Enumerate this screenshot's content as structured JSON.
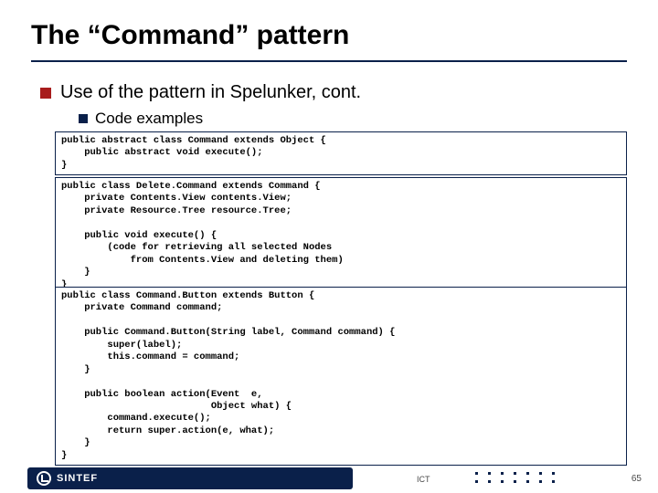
{
  "title": "The “Command” pattern",
  "bullets": {
    "lvl1": "Use of the pattern in Spelunker, cont.",
    "lvl2": "Code examples"
  },
  "code": {
    "box1": "public abstract class Command extends Object {\n    public abstract void execute();\n}",
    "box2": "public class Delete.Command extends Command {\n    private Contents.View contents.View;\n    private Resource.Tree resource.Tree;\n\n    public void execute() {\n        (code for retrieving all selected Nodes\n            from Contents.View and deleting them)\n    }\n}",
    "box3": "public class Command.Button extends Button {\n    private Command command;\n\n    public Command.Button(String label, Command command) {\n        super(label);\n        this.command = command;\n    }\n\n    public boolean action(Event  e,\n                          Object what) {\n        command.execute();\n        return super.action(e, what);\n    }\n}"
  },
  "footer": {
    "brand": "SINTEF",
    "dept": "ICT",
    "page": "65"
  },
  "colors": {
    "navy": "#0a204a",
    "red": "#a81c1c",
    "text": "#000000",
    "bg": "#ffffff"
  }
}
